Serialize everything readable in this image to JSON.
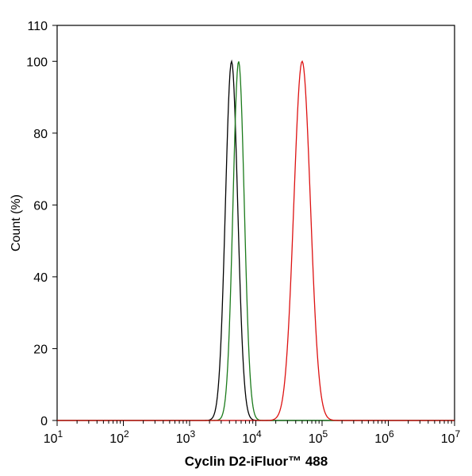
{
  "chart_data": {
    "type": "line",
    "xlabel": "Cyclin D2-iFluor™ 488",
    "ylabel": "Count  (%)",
    "x_scale": "log",
    "xlim": [
      10,
      10000000
    ],
    "ylim": [
      0,
      110
    ],
    "x_ticks": [
      {
        "value": 10,
        "base": "10",
        "exp": "1"
      },
      {
        "value": 100,
        "base": "10",
        "exp": "2"
      },
      {
        "value": 1000,
        "base": "10",
        "exp": "3"
      },
      {
        "value": 10000,
        "base": "10",
        "exp": "4"
      },
      {
        "value": 100000,
        "base": "10",
        "exp": "5"
      },
      {
        "value": 1000000,
        "base": "10",
        "exp": "6"
      },
      {
        "value": 10000000,
        "base": "10",
        "exp": "7"
      }
    ],
    "y_ticks": [
      {
        "value": 0,
        "label": "0"
      },
      {
        "value": 20,
        "label": "20"
      },
      {
        "value": 40,
        "label": "40"
      },
      {
        "value": 60,
        "label": "60"
      },
      {
        "value": 80,
        "label": "80"
      },
      {
        "value": 100,
        "label": "100"
      },
      {
        "value": 110,
        "label": "110"
      }
    ],
    "grid": false,
    "legend": "none",
    "series": [
      {
        "color": "#000000",
        "peak_x": 4300,
        "log_sigma": 0.092,
        "x": [
          1500,
          2000,
          2500,
          3000,
          3500,
          4000,
          4300,
          4600,
          5000,
          5500,
          6500,
          8000,
          10000
        ],
        "y": [
          0.5,
          2,
          7,
          25,
          60,
          92,
          100,
          93,
          74,
          40,
          10,
          2,
          0.5
        ]
      },
      {
        "color": "#1a7a1a",
        "peak_x": 5500,
        "log_sigma": 0.085,
        "x": [
          2000,
          2800,
          3500,
          4200,
          4800,
          5200,
          5500,
          5800,
          6200,
          7000,
          8000,
          10000,
          12000
        ],
        "y": [
          0.5,
          3,
          15,
          50,
          82,
          96,
          100,
          96,
          80,
          42,
          12,
          1,
          0.2
        ]
      },
      {
        "color": "#dd1111",
        "peak_x": 50000,
        "log_sigma": 0.125,
        "x": [
          10000,
          15000,
          20000,
          28000,
          35000,
          42000,
          50000,
          58000,
          68000,
          80000,
          100000,
          130000,
          200000
        ],
        "y": [
          0.5,
          4,
          12,
          38,
          70,
          92,
          100,
          92,
          72,
          45,
          18,
          5,
          0.5
        ]
      }
    ]
  }
}
